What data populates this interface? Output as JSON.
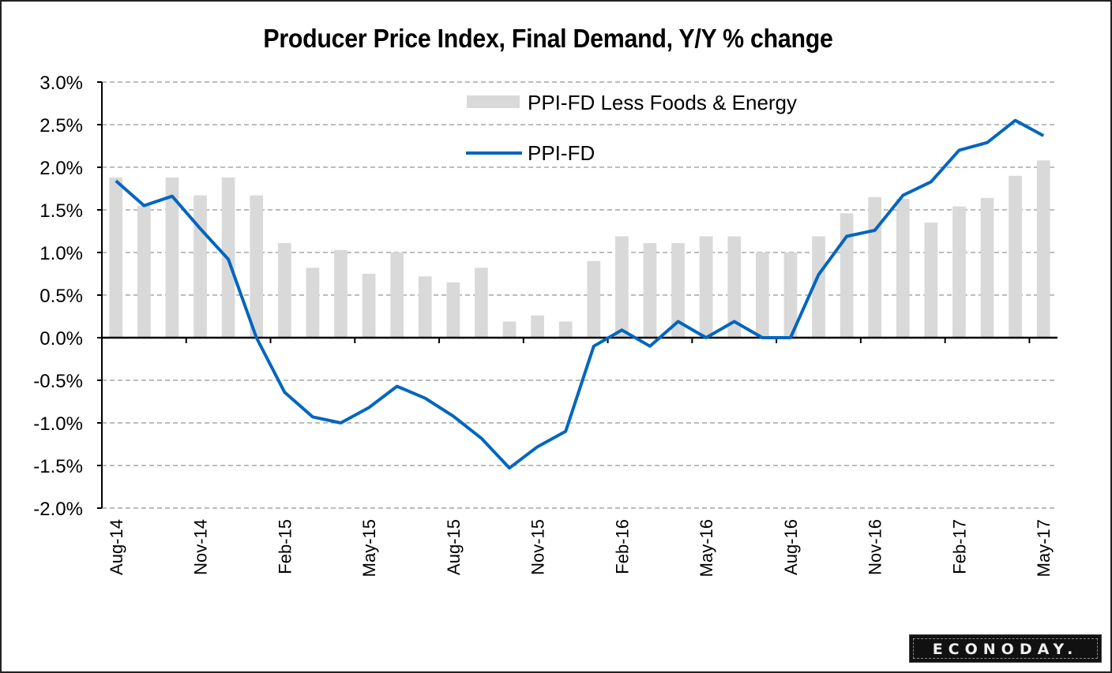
{
  "chart_data": {
    "type": "bar",
    "title": "Producer Price Index, Final Demand, Y/Y % change",
    "xlabel": "",
    "ylabel": "",
    "ylim": [
      -2.0,
      3.0
    ],
    "ytick_step": 0.5,
    "ytick_labels": [
      "3.0%",
      "2.5%",
      "2.0%",
      "1.5%",
      "1.0%",
      "0.5%",
      "0.0%",
      "-0.5%",
      "-1.0%",
      "-1.5%",
      "-2.0%"
    ],
    "grid": true,
    "legend_position": "top-center",
    "categories": [
      "Aug-14",
      "Sep-14",
      "Oct-14",
      "Nov-14",
      "Dec-14",
      "Jan-15",
      "Feb-15",
      "Mar-15",
      "Apr-15",
      "May-15",
      "Jun-15",
      "Jul-15",
      "Aug-15",
      "Sep-15",
      "Oct-15",
      "Nov-15",
      "Dec-15",
      "Jan-16",
      "Feb-16",
      "Mar-16",
      "Apr-16",
      "May-16",
      "Jun-16",
      "Jul-16",
      "Aug-16",
      "Sep-16",
      "Oct-16",
      "Nov-16",
      "Dec-16",
      "Jan-17",
      "Feb-17",
      "Mar-17",
      "Apr-17",
      "May-17"
    ],
    "x_tick_labels": [
      "Aug-14",
      "Nov-14",
      "Feb-15",
      "May-15",
      "Aug-15",
      "Nov-15",
      "Feb-16",
      "May-16",
      "Aug-16",
      "Nov-16",
      "Feb-17",
      "May-17"
    ],
    "series": [
      {
        "name": "PPI-FD Less Foods & Energy",
        "type": "bar",
        "color": "#d9d9d9",
        "values": [
          1.88,
          1.55,
          1.88,
          1.67,
          1.88,
          1.67,
          1.11,
          0.82,
          1.03,
          0.75,
          1.0,
          0.72,
          0.65,
          0.82,
          0.19,
          0.26,
          0.19,
          0.9,
          1.19,
          1.11,
          1.11,
          1.19,
          1.19,
          1.0,
          1.0,
          1.19,
          1.46,
          1.65,
          1.63,
          1.35,
          1.54,
          1.64,
          1.9,
          2.08
        ]
      },
      {
        "name": "PPI-FD",
        "type": "line",
        "color": "#0066bf",
        "values": [
          1.84,
          1.55,
          1.66,
          1.28,
          0.92,
          0.0,
          -0.64,
          -0.93,
          -1.0,
          -0.82,
          -0.57,
          -0.71,
          -0.92,
          -1.18,
          -1.53,
          -1.28,
          -1.1,
          -0.1,
          0.09,
          -0.1,
          0.19,
          0.0,
          0.19,
          0.0,
          0.0,
          0.74,
          1.19,
          1.26,
          1.67,
          1.83,
          2.2,
          2.29,
          2.55,
          2.37
        ]
      }
    ]
  },
  "logo": {
    "text": "ECONODAY."
  }
}
